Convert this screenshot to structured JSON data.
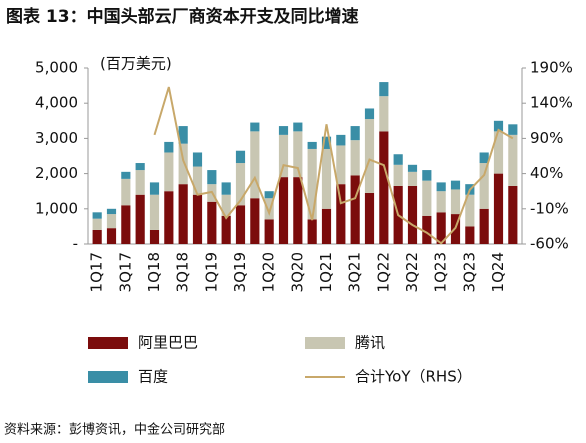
{
  "chart_data": {
    "type": "bar",
    "title": "图表 13：中国头部云厂商资本开支及同比增速",
    "y_unit": "(百万美元)",
    "source": "资料来源：彭博资讯，中金公司研究部",
    "categories": [
      "1Q17",
      null,
      "3Q17",
      null,
      "1Q18",
      null,
      "3Q18",
      null,
      "1Q19",
      null,
      "3Q19",
      null,
      "1Q20",
      null,
      "3Q20",
      null,
      "1Q21",
      null,
      "3Q21",
      null,
      "1Q22",
      null,
      "3Q22",
      null,
      "1Q23",
      null,
      "3Q23",
      null,
      "1Q24",
      null
    ],
    "series": [
      {
        "name": "阿里巴巴",
        "color": "#7b0c0c",
        "values": [
          400,
          450,
          1100,
          1400,
          400,
          1500,
          1700,
          1400,
          1200,
          800,
          1100,
          1300,
          700,
          1900,
          1900,
          700,
          1000,
          1700,
          1950,
          1450,
          3200,
          1650,
          1650,
          800,
          900,
          850,
          500,
          1000,
          2000,
          1650
        ]
      },
      {
        "name": "腾讯",
        "color": "#c8c6b2",
        "values": [
          320,
          400,
          750,
          700,
          1000,
          1100,
          1150,
          800,
          500,
          600,
          1200,
          1900,
          600,
          1200,
          1300,
          2000,
          1700,
          1100,
          1000,
          2100,
          1000,
          600,
          400,
          1000,
          600,
          700,
          900,
          1300,
          1200,
          1450
        ]
      },
      {
        "name": "百度",
        "color": "#3a8ea6",
        "values": [
          180,
          150,
          200,
          200,
          350,
          300,
          500,
          400,
          400,
          350,
          350,
          250,
          200,
          250,
          250,
          200,
          350,
          300,
          400,
          300,
          400,
          300,
          200,
          300,
          250,
          250,
          300,
          300,
          300,
          300
        ]
      },
      {
        "name": "合计YoY（RHS）",
        "color": "#c8a86a",
        "axis": "y2",
        "type": "line",
        "values": [
          null,
          null,
          null,
          null,
          95,
          163,
          59,
          10,
          14,
          -23,
          2,
          34,
          -16,
          52,
          48,
          -26,
          110,
          -2,
          5,
          60,
          52,
          -19,
          -33,
          -44,
          -59,
          -37,
          17,
          38,
          102,
          90
        ]
      }
    ],
    "ylim": [
      0,
      5000
    ],
    "yticks": [
      {
        "value": 0,
        "label": "-"
      },
      {
        "value": 1000,
        "label": "1,000"
      },
      {
        "value": 2000,
        "label": "2,000"
      },
      {
        "value": 3000,
        "label": "3,000"
      },
      {
        "value": 4000,
        "label": "4,000"
      },
      {
        "value": 5000,
        "label": "5,000"
      }
    ],
    "y2lim": [
      -60,
      190
    ],
    "y2ticks": [
      {
        "value": -60,
        "label": "-60%"
      },
      {
        "value": -10,
        "label": "-10%"
      },
      {
        "value": 40,
        "label": "40%"
      },
      {
        "value": 90,
        "label": "90%"
      },
      {
        "value": 140,
        "label": "140%"
      },
      {
        "value": 190,
        "label": "190%"
      }
    ]
  }
}
